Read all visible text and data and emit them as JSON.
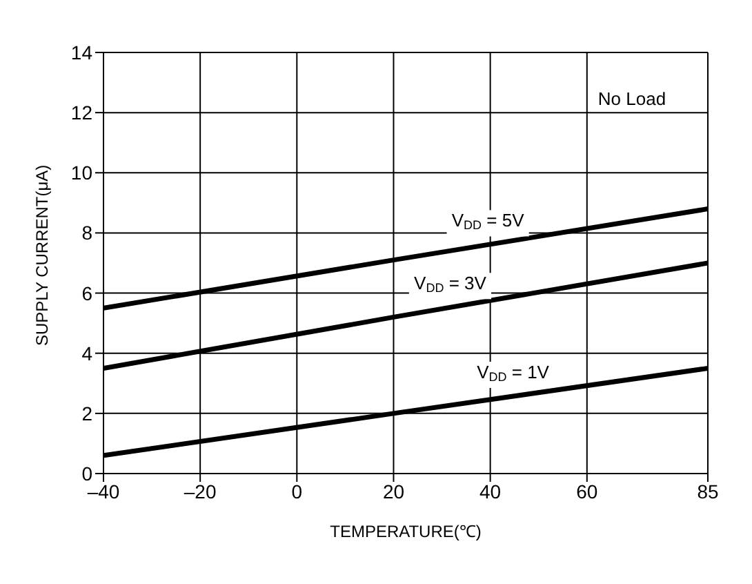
{
  "chart_data": {
    "type": "line",
    "xlabel": "TEMPERATURE(℃)",
    "ylabel": "SUPPLY CURRENT(μA)",
    "series": [
      {
        "name": "V$_{DD}$ = 5V",
        "x": [
          -40,
          20,
          85
        ],
        "values": [
          5.5,
          7.1,
          8.8
        ],
        "color": "#000000"
      },
      {
        "name": "V$_{DD}$ = 3V",
        "x": [
          -40,
          20,
          85
        ],
        "values": [
          3.5,
          5.2,
          7.0
        ],
        "color": "#000000"
      },
      {
        "name": "V$_{DD}$ = 1V",
        "x": [
          -40,
          20,
          85
        ],
        "values": [
          0.6,
          2.0,
          3.5
        ],
        "color": "#000000"
      }
    ],
    "xlim": [
      -40,
      85
    ],
    "xticks": [
      {
        "value": -40,
        "label": "–40"
      },
      {
        "value": -20,
        "label": "–20"
      },
      0,
      20,
      40,
      60,
      85
    ],
    "ylim": [
      0,
      14
    ],
    "yticks": [
      0,
      2,
      4,
      6,
      8,
      10,
      12,
      14
    ],
    "grid": true,
    "marker": "none",
    "line_style": "solid",
    "legend": false,
    "annotations": [
      "No Load"
    ]
  }
}
